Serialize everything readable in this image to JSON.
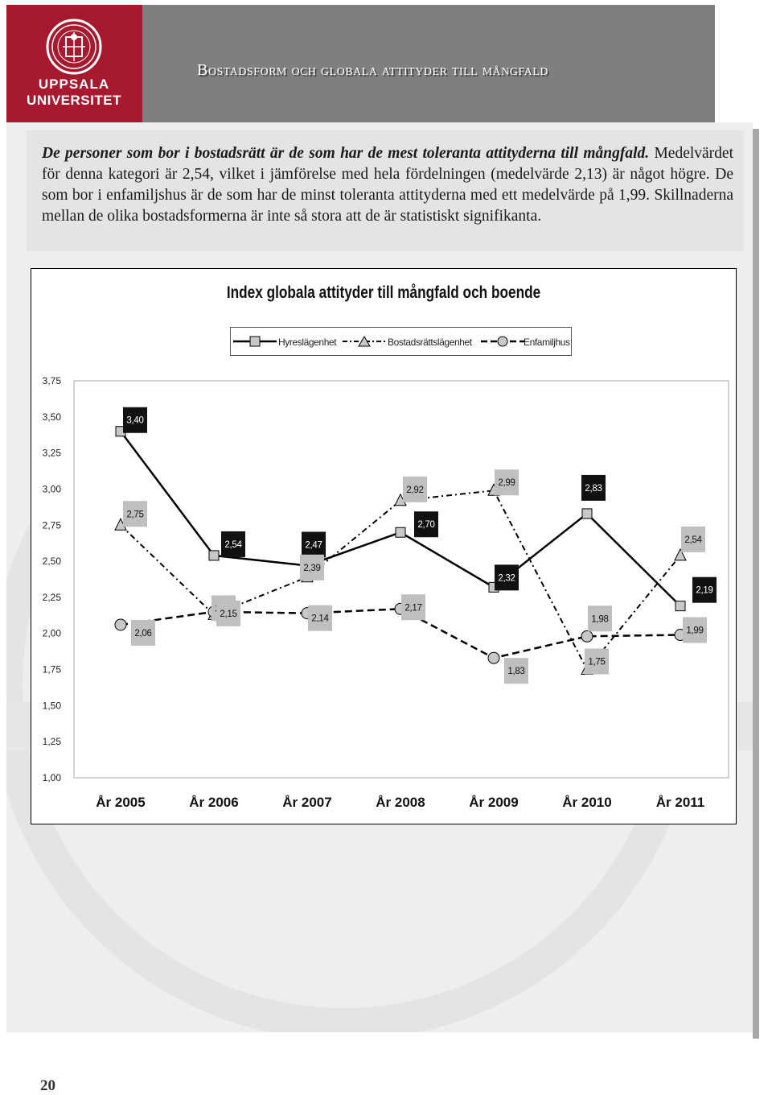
{
  "logo": {
    "line1": "UPPSALA",
    "line2": "UNIVERSITET"
  },
  "header": {
    "title": "Bostadsform och globala attityder till mångfald"
  },
  "intro": {
    "lead": "De personer som bor i bostadsrätt är de som har de mest toleranta attityderna till mångfald.",
    "body": " Medelvärdet för denna kategori är 2,54, vilket i jämförelse med hela fördelningen (medelvärde 2,13) är något högre. De som bor i enfamiljshus är de som har de minst toleranta attityderna med ett medelvärde på 1,99. Skillnaderna mellan de olika bostadsformerna är inte så stora att de är statistiskt signifikanta."
  },
  "page_number": "20",
  "colors": {
    "logo_red": "#a6192e",
    "header_gray": "#7f7f7f",
    "label_dark": "#111111",
    "label_light": "#bfbfbf"
  },
  "chart_data": {
    "type": "line",
    "title": "Index globala attityder till mångfald och boende",
    "categories": [
      "År 2005",
      "År 2006",
      "År 2007",
      "År 2008",
      "År 2009",
      "År 2010",
      "År 2011"
    ],
    "ylim": [
      1.0,
      3.75
    ],
    "yticks": [
      "1,00",
      "1,25",
      "1,50",
      "1,75",
      "2,00",
      "2,25",
      "2,50",
      "2,75",
      "3,00",
      "3,25",
      "3,50",
      "3,75"
    ],
    "legend_position": "top",
    "series": [
      {
        "name": "Hyreslägenhet",
        "marker": "square",
        "line": "solid",
        "values": [
          3.4,
          2.54,
          2.47,
          2.7,
          2.32,
          2.83,
          2.19
        ],
        "labels": [
          "3,40",
          "2,54",
          "2,47",
          "2,70",
          "2,32",
          "2,83",
          "2,19"
        ]
      },
      {
        "name": "Bostadsrättslägenhet",
        "marker": "triangle",
        "line": "dash-dot",
        "values": [
          2.75,
          2.13,
          2.39,
          2.92,
          2.99,
          1.75,
          2.54
        ],
        "labels": [
          "2,75",
          "2,13",
          "2,39",
          "2,92",
          "2,99",
          "1,75",
          "2,54"
        ]
      },
      {
        "name": "Enfamiljhus",
        "marker": "circle",
        "line": "dashed",
        "values": [
          2.06,
          2.15,
          2.14,
          2.17,
          1.83,
          1.98,
          1.99
        ],
        "labels": [
          "2,06",
          "2,15",
          "2,14",
          "2,17",
          "1,83",
          "1,98",
          "1,99"
        ]
      }
    ]
  }
}
